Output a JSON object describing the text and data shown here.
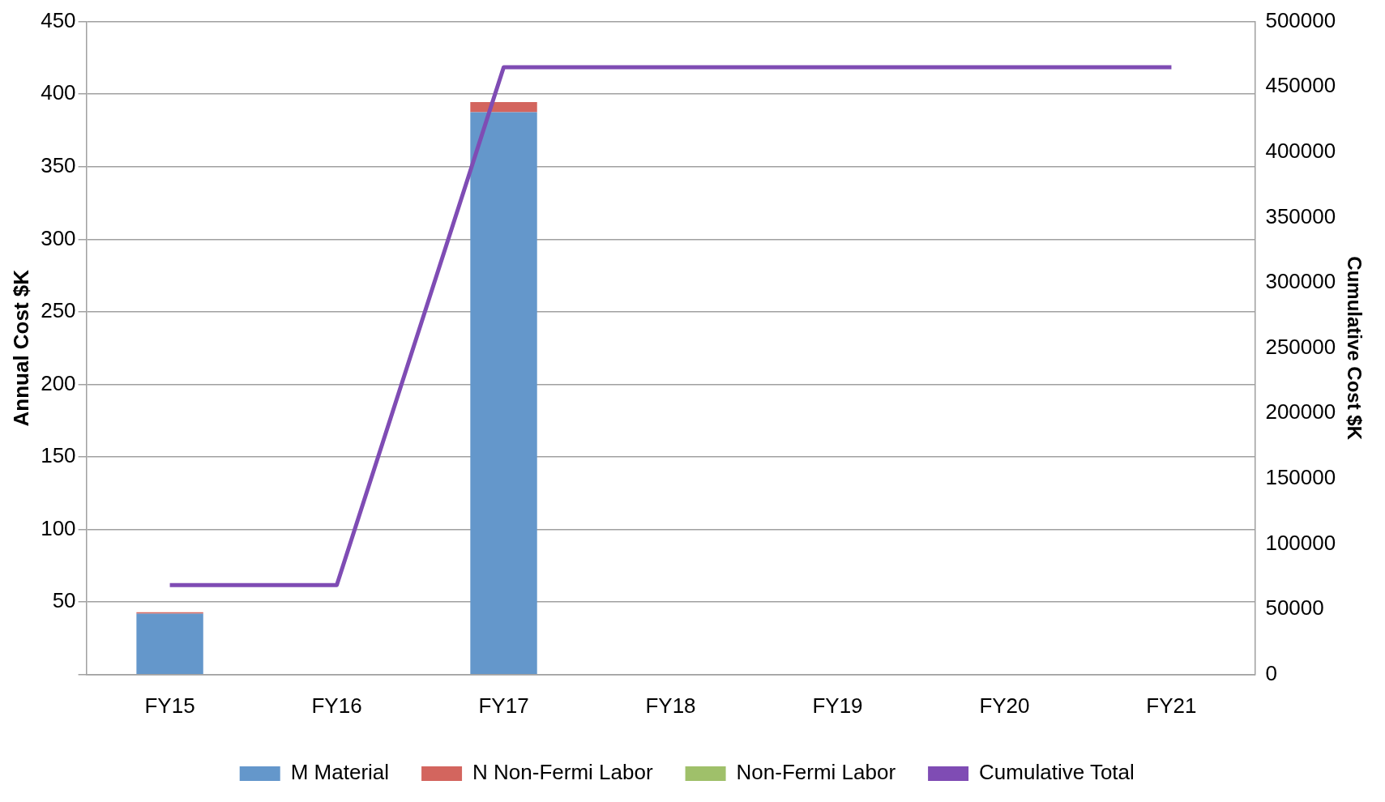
{
  "chart_data": {
    "type": "bar",
    "stacked": true,
    "categories": [
      "FY15",
      "FY16",
      "FY17",
      "FY18",
      "FY19",
      "FY20",
      "FY21"
    ],
    "ylabel": "Annual Cost $K",
    "y2label": "Cumulative Cost $K",
    "ylim": [
      0,
      450
    ],
    "yticks": [
      {
        "value": 0,
        "label": null
      },
      50,
      100,
      150,
      200,
      250,
      300,
      350,
      400,
      450
    ],
    "y2lim": [
      0,
      500000
    ],
    "y2ticks": [
      0,
      50000,
      100000,
      150000,
      200000,
      250000,
      300000,
      350000,
      400000,
      450000,
      500000
    ],
    "grid": "y",
    "legend": "bottom",
    "series": [
      {
        "name": "M Material",
        "color": "#6497cb",
        "values": [
          42,
          0,
          387.5,
          0,
          0,
          0,
          0
        ]
      },
      {
        "name": "N Non-Fermi Labor",
        "color": "#d3655e",
        "values": [
          1,
          0,
          7,
          0,
          0,
          0,
          0
        ]
      },
      {
        "name": "Non-Fermi Labor",
        "color": "#9fc06a",
        "values": [
          0,
          0,
          0,
          0,
          0,
          0,
          0
        ]
      },
      {
        "name": "Cumulative Total",
        "type": "line",
        "axis": "y2",
        "color": "#7f4cb4",
        "values": [
          68500,
          68500,
          465000,
          465000,
          465000,
          465000,
          465000
        ]
      }
    ]
  }
}
